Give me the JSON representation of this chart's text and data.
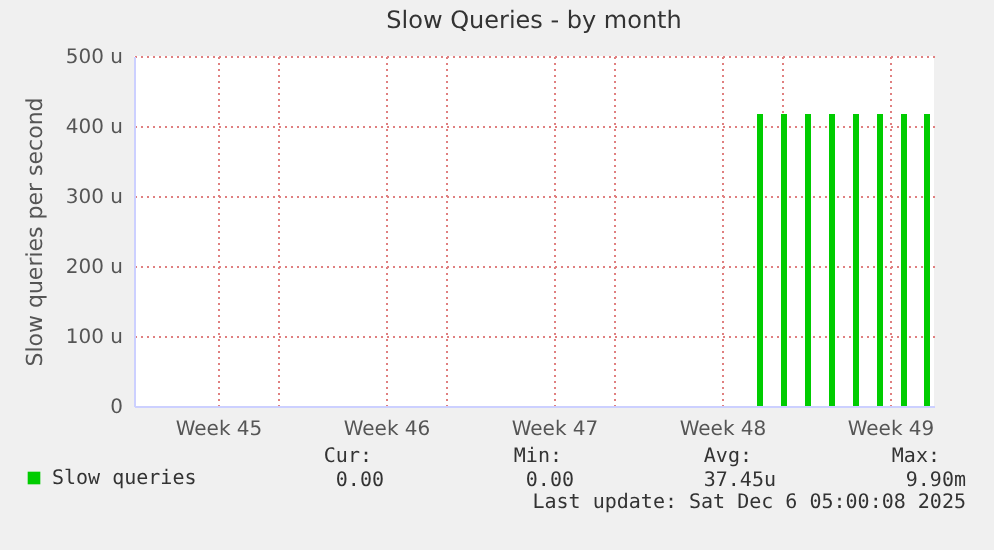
{
  "chart_data": {
    "type": "bar",
    "title": "Slow Queries - by month",
    "ylabel": "Slow queries per second",
    "x": [
      "2025-11-29T02:00",
      "2025-11-30T02:00",
      "2025-12-01T02:00",
      "2025-12-02T02:00",
      "2025-12-03T02:00",
      "2025-12-04T02:00",
      "2025-12-05T02:00",
      "2025-12-06T01:00"
    ],
    "series": [
      {
        "name": "Slow queries",
        "color": "#00cc00",
        "values": [
          417,
          417,
          417,
          417,
          417,
          417,
          417,
          417
        ]
      }
    ],
    "xlim": [
      "2025-11-03T00:00",
      "2025-12-06T08:00"
    ],
    "xticks": [
      {
        "value": "2025-11-06T12:00",
        "label": "Week 45"
      },
      {
        "value": "2025-11-09T00:00",
        "label": null
      },
      {
        "value": "2025-11-16T00:00",
        "label": null
      },
      {
        "value": "2025-11-23T00:00",
        "label": null
      },
      {
        "value": "2025-11-30T00:00",
        "label": null
      },
      {
        "value": "2025-11-13T12:00",
        "label": "Week 46"
      },
      {
        "value": "2025-11-20T12:00",
        "label": "Week 47"
      },
      {
        "value": "2025-11-27T12:00",
        "label": "Week 48"
      },
      {
        "value": "2025-12-04T12:00",
        "label": "Week 49"
      }
    ],
    "ylim": [
      0,
      500
    ],
    "yticks": [
      {
        "value": 0,
        "label": "0"
      },
      {
        "value": 100,
        "label": "100 u"
      },
      {
        "value": 200,
        "label": "200 u"
      },
      {
        "value": 300,
        "label": "300 u"
      },
      {
        "value": 400,
        "label": "400 u"
      },
      {
        "value": 500,
        "label": "500 u"
      }
    ],
    "grid": true,
    "legend": "bottom left",
    "annotations": [
      "Cur:",
      "Min:",
      "Avg:",
      "Max:",
      "0.00",
      "0.00",
      "37.45u",
      "9.90m",
      "Last update: Sat Dec  6 05:00:08 2025"
    ]
  }
}
